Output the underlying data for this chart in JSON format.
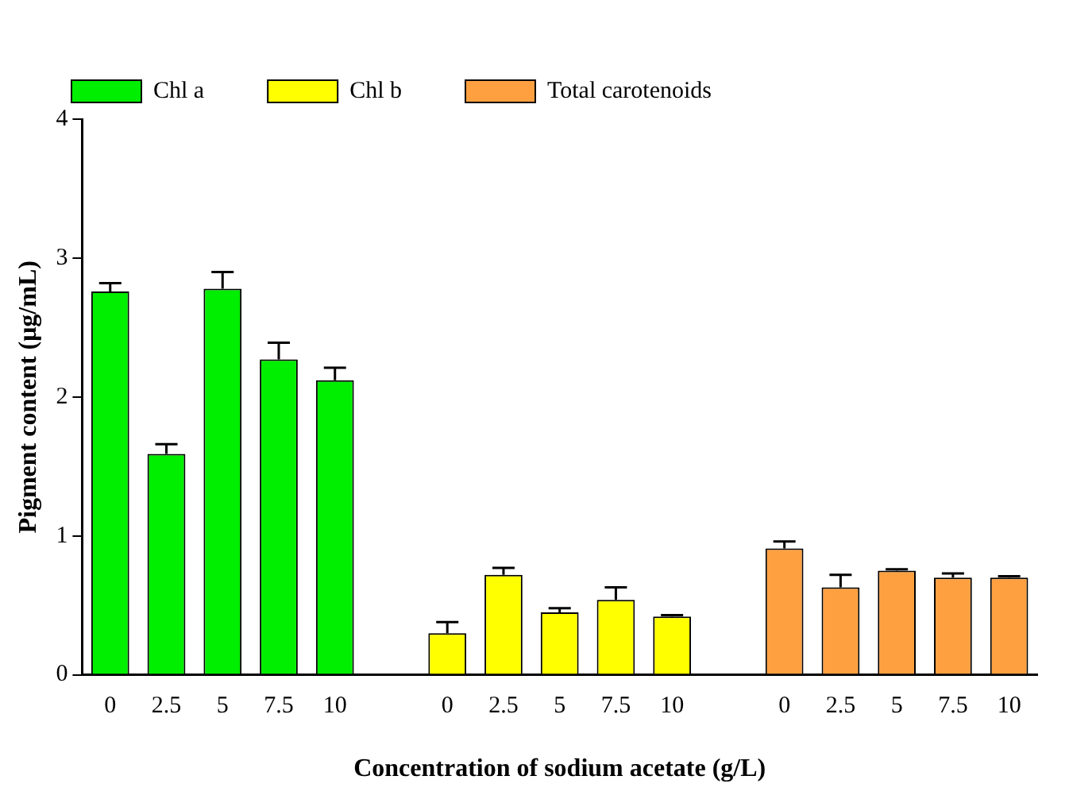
{
  "chart_data": {
    "type": "bar",
    "xlabel": "Concentration of sodium acetate (g/L)",
    "ylabel": "Pigment content (μg/mL)",
    "categories": [
      "0",
      "2.5",
      "5",
      "7.5",
      "10",
      null,
      "0",
      "2.5",
      "5",
      "7.5",
      "10",
      null,
      "0",
      "2.5",
      "5",
      "7.5",
      "10"
    ],
    "series": [
      {
        "name": "Chl a",
        "color": "#00ee00",
        "values": [
          2.76,
          1.59,
          2.78,
          2.27,
          2.12,
          null,
          null,
          null,
          null,
          null,
          null,
          null,
          null,
          null,
          null,
          null,
          null
        ],
        "errors": [
          [
            2.76,
            2.82
          ],
          [
            1.59,
            1.66
          ],
          [
            2.78,
            2.9
          ],
          [
            2.27,
            2.39
          ],
          [
            2.12,
            2.21
          ],
          null,
          null,
          null,
          null,
          null,
          null,
          null,
          null,
          null,
          null,
          null,
          null
        ]
      },
      {
        "name": "Chl b",
        "color": "#ffff00",
        "values": [
          null,
          null,
          null,
          null,
          null,
          null,
          0.3,
          0.72,
          0.45,
          0.54,
          0.42,
          null,
          null,
          null,
          null,
          null,
          null
        ],
        "errors": [
          null,
          null,
          null,
          null,
          null,
          null,
          [
            0.3,
            0.38
          ],
          [
            0.72,
            0.77
          ],
          [
            0.45,
            0.48
          ],
          [
            0.54,
            0.63
          ],
          [
            0.42,
            0.43
          ],
          null,
          null,
          null,
          null,
          null,
          null
        ]
      },
      {
        "name": "Total carotenoids",
        "color": "#ffa040",
        "values": [
          null,
          null,
          null,
          null,
          null,
          null,
          null,
          null,
          null,
          null,
          null,
          null,
          0.91,
          0.63,
          0.75,
          0.7,
          0.7
        ],
        "errors": [
          null,
          null,
          null,
          null,
          null,
          null,
          null,
          null,
          null,
          null,
          null,
          null,
          [
            0.91,
            0.96
          ],
          [
            0.63,
            0.72
          ],
          [
            0.75,
            0.76
          ],
          [
            0.7,
            0.73
          ],
          [
            0.7,
            0.71
          ]
        ]
      }
    ],
    "ylim": [
      0,
      4
    ],
    "yticks": [
      0,
      1,
      2,
      3,
      4
    ],
    "grid": false,
    "legend": "top left"
  }
}
